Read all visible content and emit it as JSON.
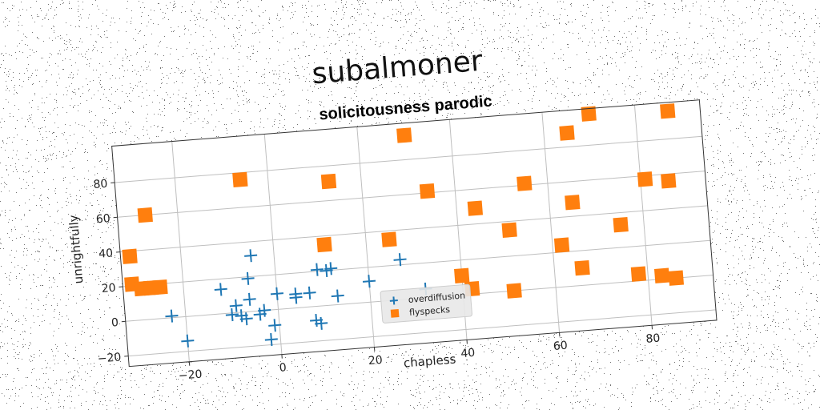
{
  "chart_data": {
    "type": "scatter",
    "title": "subalmoner",
    "subtitle": "solicitousness parodic",
    "xlabel": "chapless",
    "ylabel": "unrightfully",
    "xlim": [
      -33,
      94
    ],
    "ylim": [
      -26,
      101
    ],
    "xticks": [
      -20,
      0,
      20,
      40,
      60,
      80
    ],
    "yticks": [
      -20,
      0,
      20,
      40,
      60,
      80
    ],
    "grid": true,
    "legend_position": "lower-center",
    "series": [
      {
        "name": "overdiffusion",
        "marker": "plus",
        "color": "#1f77b4",
        "points": [
          [
            -23,
            1
          ],
          [
            -20,
            -14
          ],
          [
            -12,
            14
          ],
          [
            -10,
            -1
          ],
          [
            -9,
            4
          ],
          [
            -8,
            -2
          ],
          [
            -7,
            -4
          ],
          [
            -6,
            7
          ],
          [
            -6,
            19
          ],
          [
            -5,
            32
          ],
          [
            -4,
            -2
          ],
          [
            -3,
            0
          ],
          [
            -2,
            -17
          ],
          [
            -1,
            -9
          ],
          [
            0,
            9
          ],
          [
            4,
            6
          ],
          [
            4,
            8
          ],
          [
            7,
            8
          ],
          [
            8,
            -8
          ],
          [
            9,
            -10
          ],
          [
            9,
            21
          ],
          [
            11,
            20
          ],
          [
            12,
            21
          ],
          [
            13,
            5
          ],
          [
            20,
            12
          ],
          [
            27,
            23
          ],
          [
            32,
            5
          ]
        ]
      },
      {
        "name": "flyspecks",
        "marker": "square",
        "color": "#ff7f0e",
        "points": [
          [
            -31,
            37
          ],
          [
            -31,
            21
          ],
          [
            -29,
            18
          ],
          [
            -27,
            18
          ],
          [
            -25,
            18
          ],
          [
            -27,
            60
          ],
          [
            -6,
            76
          ],
          [
            11,
            35
          ],
          [
            13,
            71
          ],
          [
            25,
            35
          ],
          [
            30,
            94
          ],
          [
            34,
            61
          ],
          [
            40,
            11
          ],
          [
            42,
            3
          ],
          [
            44,
            49
          ],
          [
            51,
            35
          ],
          [
            51,
            0
          ],
          [
            55,
            61
          ],
          [
            62,
            24
          ],
          [
            65,
            88
          ],
          [
            65,
            48
          ],
          [
            66,
            10
          ],
          [
            70,
            98
          ],
          [
            75,
            33
          ],
          [
            78,
            4
          ],
          [
            81,
            58
          ],
          [
            83,
            2
          ],
          [
            86,
            0
          ],
          [
            86,
            56
          ],
          [
            87,
            96
          ]
        ]
      }
    ]
  }
}
